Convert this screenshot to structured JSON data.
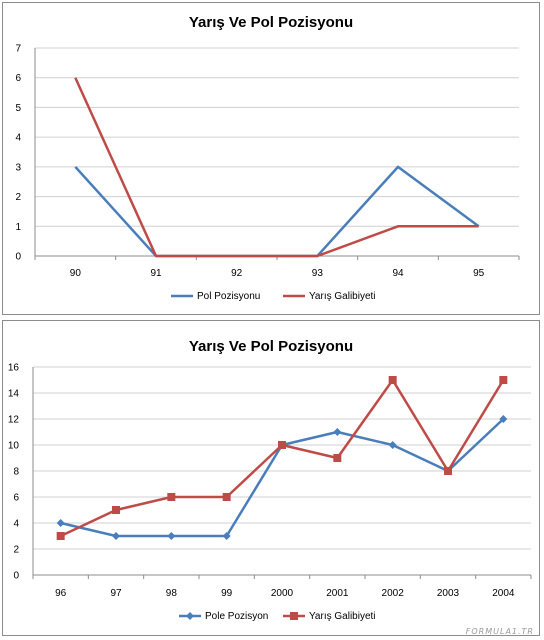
{
  "watermark": "FORMULA1.TR",
  "chart_data": [
    {
      "type": "line",
      "title": "Yarış Ve Pol Pozisyonu",
      "categories": [
        "90",
        "91",
        "92",
        "93",
        "94",
        "95"
      ],
      "ylim": [
        0,
        7
      ],
      "yticks": [
        "0",
        "1",
        "2",
        "3",
        "4",
        "5",
        "6",
        "7"
      ],
      "grid": true,
      "legend": "bottom",
      "markers": false,
      "series": [
        {
          "name": "Pol Pozisyonu",
          "color": "#4a7ebb",
          "values": [
            3,
            0,
            0,
            0,
            3,
            1
          ]
        },
        {
          "name": "Yarış Galibiyeti",
          "color": "#be4b48",
          "values": [
            6,
            0,
            0,
            0,
            1,
            1
          ]
        }
      ]
    },
    {
      "type": "line",
      "title": "Yarış Ve Pol Pozisyonu",
      "categories": [
        "96",
        "97",
        "98",
        "99",
        "2000",
        "2001",
        "2002",
        "2003",
        "2004"
      ],
      "ylim": [
        0,
        16
      ],
      "yticks": [
        "0",
        "2",
        "4",
        "6",
        "8",
        "10",
        "12",
        "14",
        "16"
      ],
      "grid": true,
      "legend": "bottom",
      "markers": true,
      "series": [
        {
          "name": "Pole Pozisyon",
          "color": "#4a7ebb",
          "marker": "diamond",
          "values": [
            4,
            3,
            3,
            3,
            10,
            11,
            10,
            8,
            12
          ]
        },
        {
          "name": "Yarış Galibiyeti",
          "color": "#be4b48",
          "marker": "square",
          "values": [
            3,
            5,
            6,
            6,
            10,
            9,
            15,
            8,
            15
          ]
        }
      ]
    }
  ]
}
